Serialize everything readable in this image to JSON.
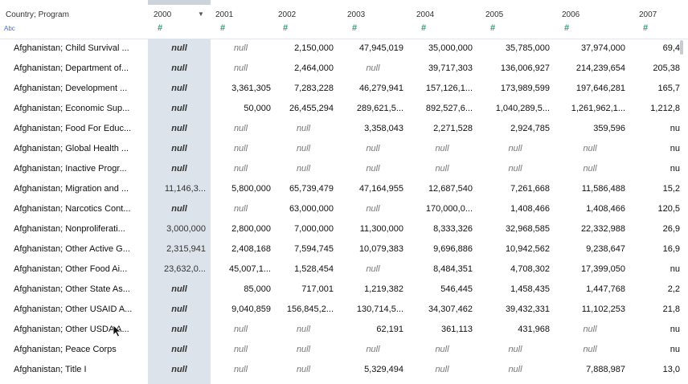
{
  "columns": [
    {
      "name": "Country; Program",
      "type": "Abc"
    },
    {
      "name": "2000",
      "type": "#"
    },
    {
      "name": "2001",
      "type": "#"
    },
    {
      "name": "2002",
      "type": "#"
    },
    {
      "name": "2003",
      "type": "#"
    },
    {
      "name": "2004",
      "type": "#"
    },
    {
      "name": "2005",
      "type": "#"
    },
    {
      "name": "2006",
      "type": "#"
    },
    {
      "name": "2007",
      "type": "#"
    }
  ],
  "rows": [
    [
      "Afghanistan; Child Survival ...",
      "null",
      "null",
      "2,150,000",
      "47,945,019",
      "35,000,000",
      "35,785,000",
      "37,974,000",
      "69,4"
    ],
    [
      "Afghanistan; Department of...",
      "null",
      "null",
      "2,464,000",
      "null",
      "39,717,303",
      "136,006,927",
      "214,239,654",
      "205,38"
    ],
    [
      "Afghanistan; Development ...",
      "null",
      "3,361,305",
      "7,283,228",
      "46,279,941",
      "157,126,1...",
      "173,989,599",
      "197,646,281",
      "165,7"
    ],
    [
      "Afghanistan; Economic Sup...",
      "null",
      "50,000",
      "26,455,294",
      "289,621,5...",
      "892,527,6...",
      "1,040,289,5...",
      "1,261,962,1...",
      "1,212,8"
    ],
    [
      "Afghanistan; Food For Educ...",
      "null",
      "null",
      "null",
      "3,358,043",
      "2,271,528",
      "2,924,785",
      "359,596",
      "nu"
    ],
    [
      "Afghanistan; Global Health ...",
      "null",
      "null",
      "null",
      "null",
      "null",
      "null",
      "null",
      "nu"
    ],
    [
      "Afghanistan; Inactive Progr...",
      "null",
      "null",
      "null",
      "null",
      "null",
      "null",
      "null",
      "nu"
    ],
    [
      "Afghanistan; Migration and ...",
      "11,146,3...",
      "5,800,000",
      "65,739,479",
      "47,164,955",
      "12,687,540",
      "7,261,668",
      "11,586,488",
      "15,2"
    ],
    [
      "Afghanistan; Narcotics Cont...",
      "null",
      "null",
      "63,000,000",
      "null",
      "170,000,0...",
      "1,408,466",
      "1,408,466",
      "120,5"
    ],
    [
      "Afghanistan; Nonproliferati...",
      "3,000,000",
      "2,800,000",
      "7,000,000",
      "11,300,000",
      "8,333,326",
      "32,968,585",
      "22,332,988",
      "26,9"
    ],
    [
      "Afghanistan; Other Active G...",
      "2,315,941",
      "2,408,168",
      "7,594,745",
      "10,079,383",
      "9,696,886",
      "10,942,562",
      "9,238,647",
      "16,9"
    ],
    [
      "Afghanistan; Other Food Ai...",
      "23,632,0...",
      "45,007,1...",
      "1,528,454",
      "null",
      "8,484,351",
      "4,708,302",
      "17,399,050",
      "nu"
    ],
    [
      "Afghanistan; Other State As...",
      "null",
      "85,000",
      "717,001",
      "1,219,382",
      "546,445",
      "1,458,435",
      "1,447,768",
      "2,2"
    ],
    [
      "Afghanistan; Other USAID A...",
      "null",
      "9,040,859",
      "156,845,2...",
      "130,714,5...",
      "34,307,462",
      "39,432,331",
      "11,102,253",
      "21,8"
    ],
    [
      "Afghanistan; Other USDA A...",
      "null",
      "null",
      "null",
      "62,191",
      "361,113",
      "431,968",
      "null",
      "nu"
    ],
    [
      "Afghanistan; Peace Corps",
      "null",
      "null",
      "null",
      "null",
      "null",
      "null",
      "null",
      "nu"
    ],
    [
      "Afghanistan; Title I",
      "null",
      "null",
      "null",
      "5,329,494",
      "null",
      "null",
      "7,888,987",
      "13,0"
    ]
  ]
}
